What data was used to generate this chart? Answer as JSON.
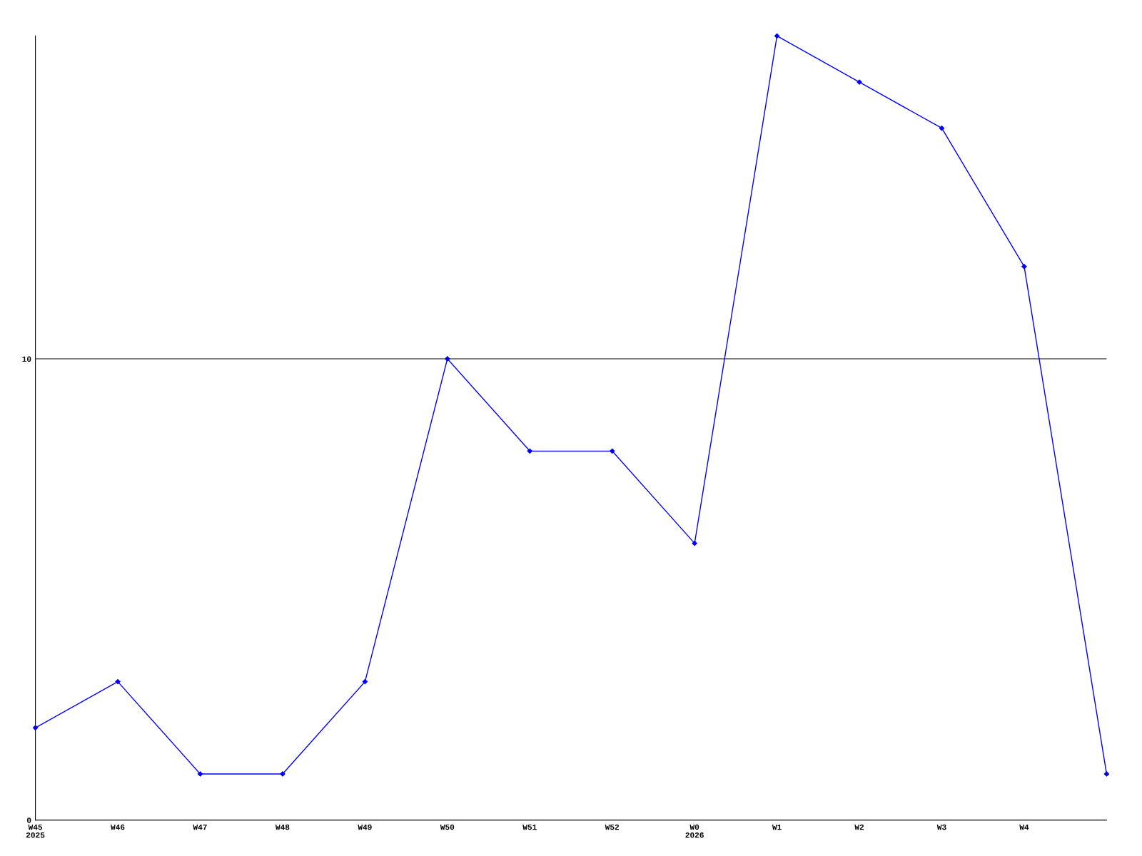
{
  "chart_data": {
    "type": "line",
    "categories": [
      "W45\n2025",
      "W46",
      "W47",
      "W48",
      "W49",
      "W50",
      "W51",
      "W52",
      "W0\n2026",
      "W1",
      "W2",
      "W3",
      "W4",
      null
    ],
    "series": [
      {
        "color": "#0000ff",
        "values": [
          2,
          3,
          1,
          1,
          3,
          10,
          8,
          8,
          6,
          17,
          16,
          15,
          12,
          1
        ]
      }
    ],
    "ylim": [
      0,
      17
    ],
    "yticks": [
      0,
      10
    ],
    "grid": "y",
    "marker": "diamond",
    "line_style": "solid"
  }
}
